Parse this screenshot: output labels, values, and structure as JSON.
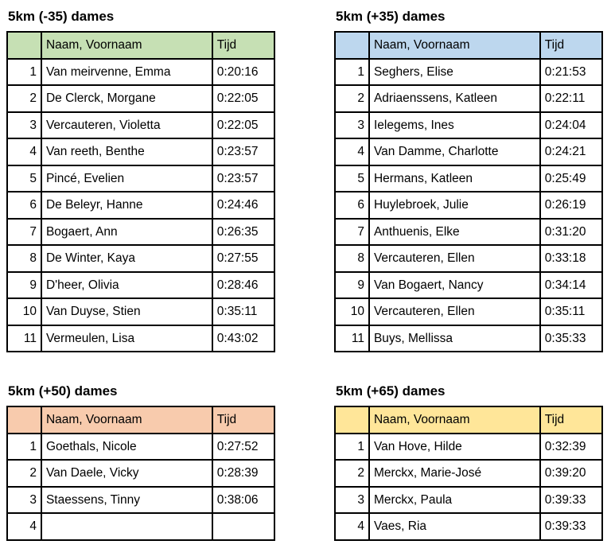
{
  "page": {
    "background": "#ffffff",
    "text_color": "#000000",
    "border_color": "#000000"
  },
  "tables": [
    {
      "title": "5km (-35) dames",
      "header_color": "#c6e0b4",
      "columns": {
        "rank": "",
        "name": "Naam, Voornaam",
        "time": "Tijd"
      },
      "rows": [
        {
          "rank": "1",
          "name": "Van meirvenne, Emma",
          "time": "0:20:16"
        },
        {
          "rank": "2",
          "name": "De Clerck, Morgane",
          "time": "0:22:05"
        },
        {
          "rank": "3",
          "name": "Vercauteren, Violetta",
          "time": "0:22:05"
        },
        {
          "rank": "4",
          "name": "Van reeth, Benthe",
          "time": "0:23:57"
        },
        {
          "rank": "5",
          "name": "Pincé, Evelien",
          "time": "0:23:57"
        },
        {
          "rank": "6",
          "name": "De Beleyr, Hanne",
          "time": "0:24:46"
        },
        {
          "rank": "7",
          "name": "Bogaert, Ann",
          "time": "0:26:35"
        },
        {
          "rank": "8",
          "name": "De Winter, Kaya",
          "time": "0:27:55"
        },
        {
          "rank": "9",
          "name": "D'heer, Olivia",
          "time": "0:28:46"
        },
        {
          "rank": "10",
          "name": "Van Duyse, Stien",
          "time": "0:35:11"
        },
        {
          "rank": "11",
          "name": "Vermeulen, Lisa",
          "time": "0:43:02"
        }
      ]
    },
    {
      "title": "5km (+35) dames",
      "header_color": "#bdd7ee",
      "columns": {
        "rank": "",
        "name": "Naam, Voornaam",
        "time": "Tijd"
      },
      "rows": [
        {
          "rank": "1",
          "name": "Seghers, Elise",
          "time": "0:21:53"
        },
        {
          "rank": "2",
          "name": "Adriaenssens, Katleen",
          "time": "0:22:11"
        },
        {
          "rank": "3",
          "name": "Ielegems, Ines",
          "time": "0:24:04"
        },
        {
          "rank": "4",
          "name": "Van Damme, Charlotte",
          "time": "0:24:21"
        },
        {
          "rank": "5",
          "name": "Hermans, Katleen",
          "time": "0:25:49"
        },
        {
          "rank": "6",
          "name": "Huylebroek, Julie",
          "time": "0:26:19"
        },
        {
          "rank": "7",
          "name": "Anthuenis, Elke",
          "time": "0:31:20"
        },
        {
          "rank": "8",
          "name": "Vercauteren, Ellen",
          "time": "0:33:18"
        },
        {
          "rank": "9",
          "name": "Van Bogaert, Nancy",
          "time": "0:34:14"
        },
        {
          "rank": "10",
          "name": "Vercauteren, Ellen",
          "time": "0:35:11"
        },
        {
          "rank": "11",
          "name": "Buys, Mellissa",
          "time": "0:35:33"
        }
      ]
    },
    {
      "title": "5km (+50) dames",
      "header_color": "#f8cbad",
      "columns": {
        "rank": "",
        "name": "Naam, Voornaam",
        "time": "Tijd"
      },
      "rows": [
        {
          "rank": "1",
          "name": "Goethals, Nicole",
          "time": "0:27:52"
        },
        {
          "rank": "2",
          "name": "Van Daele, Vicky",
          "time": "0:28:39"
        },
        {
          "rank": "3",
          "name": "Staessens, Tinny",
          "time": "0:38:06"
        },
        {
          "rank": "4",
          "name": "",
          "time": ""
        }
      ]
    },
    {
      "title": "5km (+65) dames",
      "header_color": "#ffe699",
      "columns": {
        "rank": "",
        "name": "Naam, Voornaam",
        "time": "Tijd"
      },
      "rows": [
        {
          "rank": "1",
          "name": "Van Hove, Hilde",
          "time": "0:32:39"
        },
        {
          "rank": "2",
          "name": "Merckx, Marie-José",
          "time": "0:39:20"
        },
        {
          "rank": "3",
          "name": "Merckx, Paula",
          "time": "0:39:33"
        },
        {
          "rank": "4",
          "name": "Vaes, Ria",
          "time": "0:39:33"
        }
      ]
    }
  ]
}
